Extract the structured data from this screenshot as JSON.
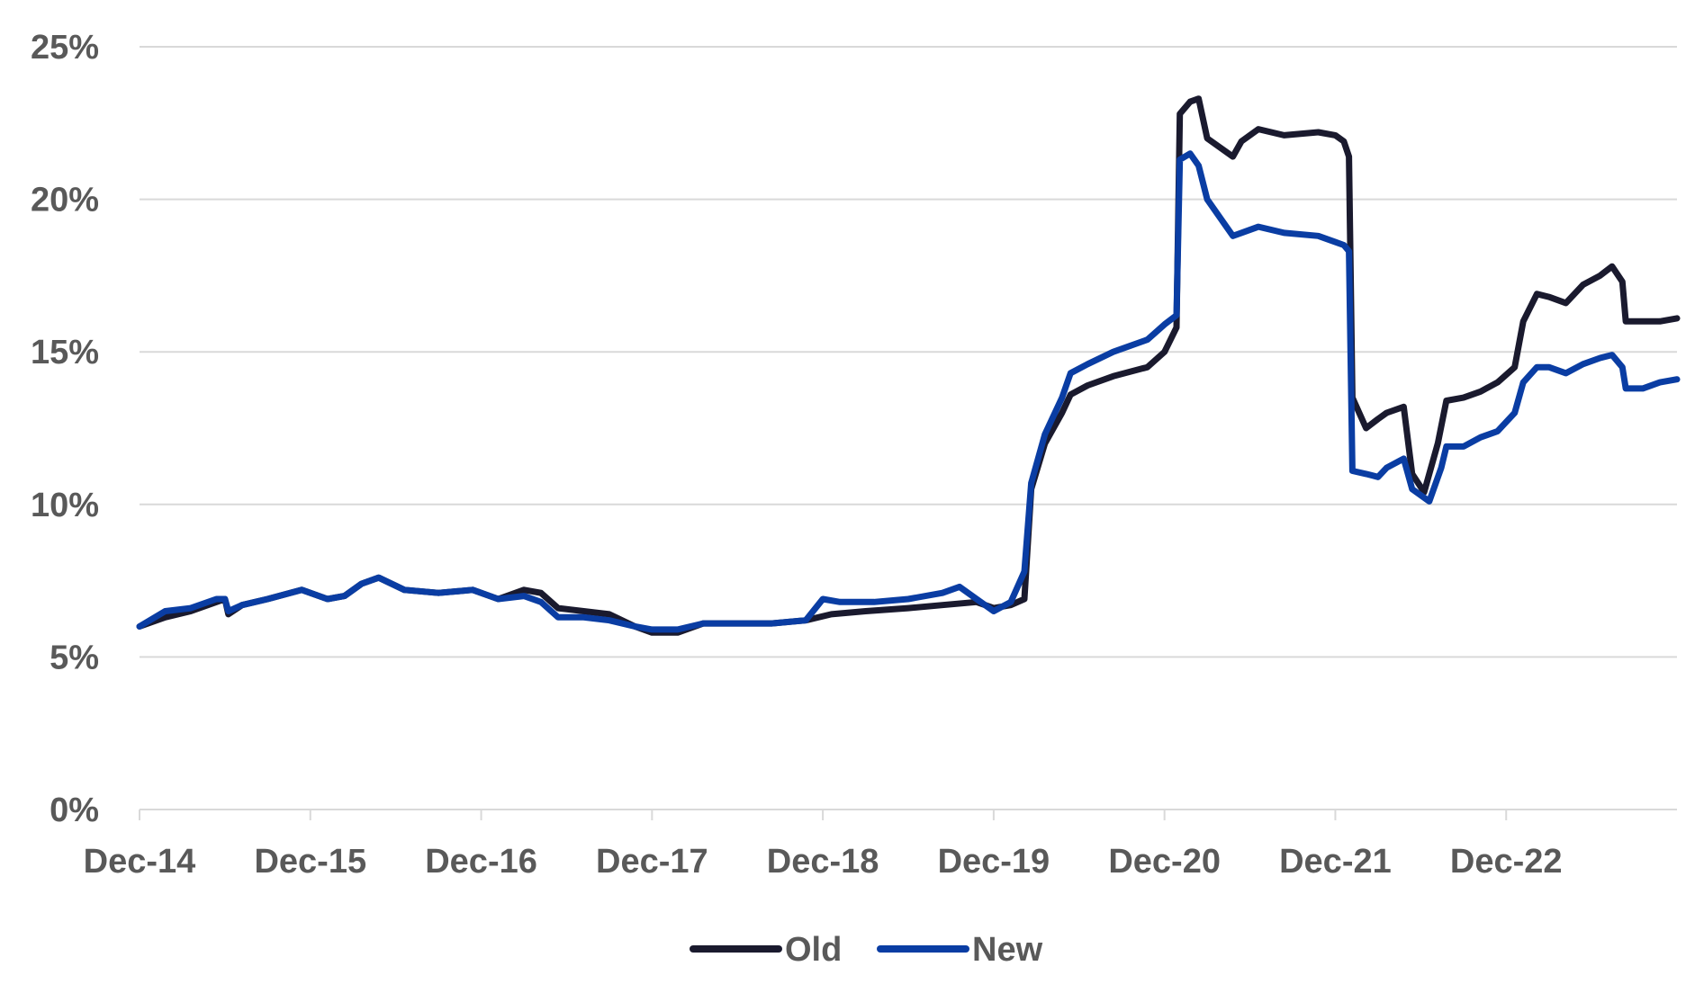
{
  "chart_data": {
    "type": "line",
    "title": "",
    "xlabel": "",
    "ylabel": "",
    "x_range": [
      0,
      9
    ],
    "ylim": [
      0,
      25
    ],
    "y_ticks": [
      0,
      5,
      10,
      15,
      20,
      25
    ],
    "y_tick_labels": [
      "0%",
      "5%",
      "10%",
      "15%",
      "20%",
      "25%"
    ],
    "x_ticks": [
      0,
      1,
      2,
      3,
      4,
      5,
      6,
      7,
      8
    ],
    "x_tick_labels": [
      "Dec-14",
      "Dec-15",
      "Dec-16",
      "Dec-17",
      "Dec-18",
      "Dec-19",
      "Dec-20",
      "Dec-21",
      "Dec-22"
    ],
    "grid": true,
    "legend_position": "bottom-center",
    "series": [
      {
        "name": "Old",
        "color": "#1a1a2e",
        "points": [
          [
            0.0,
            6.0
          ],
          [
            0.15,
            6.3
          ],
          [
            0.3,
            6.5
          ],
          [
            0.45,
            6.8
          ],
          [
            0.5,
            6.9
          ],
          [
            0.52,
            6.4
          ],
          [
            0.6,
            6.7
          ],
          [
            0.75,
            6.9
          ],
          [
            0.95,
            7.2
          ],
          [
            1.1,
            6.9
          ],
          [
            1.2,
            7.0
          ],
          [
            1.3,
            7.4
          ],
          [
            1.4,
            7.6
          ],
          [
            1.55,
            7.2
          ],
          [
            1.75,
            7.1
          ],
          [
            1.95,
            7.2
          ],
          [
            2.1,
            6.9
          ],
          [
            2.25,
            7.2
          ],
          [
            2.35,
            7.1
          ],
          [
            2.45,
            6.6
          ],
          [
            2.6,
            6.5
          ],
          [
            2.75,
            6.4
          ],
          [
            2.9,
            6.0
          ],
          [
            3.0,
            5.8
          ],
          [
            3.15,
            5.8
          ],
          [
            3.3,
            6.1
          ],
          [
            3.5,
            6.1
          ],
          [
            3.7,
            6.1
          ],
          [
            3.9,
            6.2
          ],
          [
            4.05,
            6.4
          ],
          [
            4.25,
            6.5
          ],
          [
            4.5,
            6.6
          ],
          [
            4.7,
            6.7
          ],
          [
            4.9,
            6.8
          ],
          [
            5.0,
            6.6
          ],
          [
            5.1,
            6.7
          ],
          [
            5.18,
            6.9
          ],
          [
            5.22,
            10.5
          ],
          [
            5.3,
            12.0
          ],
          [
            5.4,
            13.0
          ],
          [
            5.45,
            13.6
          ],
          [
            5.55,
            13.9
          ],
          [
            5.7,
            14.2
          ],
          [
            5.9,
            14.5
          ],
          [
            6.0,
            15.0
          ],
          [
            6.07,
            15.8
          ],
          [
            6.09,
            22.8
          ],
          [
            6.15,
            23.2
          ],
          [
            6.2,
            23.3
          ],
          [
            6.25,
            22.0
          ],
          [
            6.4,
            21.4
          ],
          [
            6.45,
            21.9
          ],
          [
            6.55,
            22.3
          ],
          [
            6.7,
            22.1
          ],
          [
            6.9,
            22.2
          ],
          [
            7.0,
            22.1
          ],
          [
            7.05,
            21.9
          ],
          [
            7.08,
            21.4
          ],
          [
            7.1,
            13.5
          ],
          [
            7.18,
            12.5
          ],
          [
            7.25,
            12.8
          ],
          [
            7.3,
            13.0
          ],
          [
            7.4,
            13.2
          ],
          [
            7.45,
            11.0
          ],
          [
            7.52,
            10.4
          ],
          [
            7.6,
            12.0
          ],
          [
            7.65,
            13.4
          ],
          [
            7.75,
            13.5
          ],
          [
            7.85,
            13.7
          ],
          [
            7.95,
            14.0
          ],
          [
            8.05,
            14.5
          ],
          [
            8.1,
            16.0
          ],
          [
            8.18,
            16.9
          ],
          [
            8.25,
            16.8
          ],
          [
            8.35,
            16.6
          ],
          [
            8.45,
            17.2
          ],
          [
            8.55,
            17.5
          ],
          [
            8.62,
            17.8
          ],
          [
            8.68,
            17.3
          ],
          [
            8.7,
            16.0
          ],
          [
            8.8,
            16.0
          ],
          [
            8.9,
            16.0
          ],
          [
            9.0,
            16.1
          ]
        ]
      },
      {
        "name": "New",
        "color": "#0a3da3",
        "points": [
          [
            0.0,
            6.0
          ],
          [
            0.15,
            6.5
          ],
          [
            0.3,
            6.6
          ],
          [
            0.45,
            6.9
          ],
          [
            0.5,
            6.9
          ],
          [
            0.52,
            6.5
          ],
          [
            0.6,
            6.7
          ],
          [
            0.75,
            6.9
          ],
          [
            0.95,
            7.2
          ],
          [
            1.1,
            6.9
          ],
          [
            1.2,
            7.0
          ],
          [
            1.3,
            7.4
          ],
          [
            1.4,
            7.6
          ],
          [
            1.55,
            7.2
          ],
          [
            1.75,
            7.1
          ],
          [
            1.95,
            7.2
          ],
          [
            2.1,
            6.9
          ],
          [
            2.25,
            7.0
          ],
          [
            2.35,
            6.8
          ],
          [
            2.45,
            6.3
          ],
          [
            2.6,
            6.3
          ],
          [
            2.75,
            6.2
          ],
          [
            2.9,
            6.0
          ],
          [
            3.0,
            5.9
          ],
          [
            3.15,
            5.9
          ],
          [
            3.3,
            6.1
          ],
          [
            3.5,
            6.1
          ],
          [
            3.7,
            6.1
          ],
          [
            3.9,
            6.2
          ],
          [
            4.0,
            6.9
          ],
          [
            4.1,
            6.8
          ],
          [
            4.3,
            6.8
          ],
          [
            4.5,
            6.9
          ],
          [
            4.7,
            7.1
          ],
          [
            4.8,
            7.3
          ],
          [
            4.9,
            6.9
          ],
          [
            5.0,
            6.5
          ],
          [
            5.1,
            6.8
          ],
          [
            5.18,
            7.8
          ],
          [
            5.22,
            10.7
          ],
          [
            5.3,
            12.3
          ],
          [
            5.4,
            13.5
          ],
          [
            5.45,
            14.3
          ],
          [
            5.55,
            14.6
          ],
          [
            5.7,
            15.0
          ],
          [
            5.9,
            15.4
          ],
          [
            6.0,
            15.9
          ],
          [
            6.07,
            16.2
          ],
          [
            6.09,
            21.3
          ],
          [
            6.15,
            21.5
          ],
          [
            6.2,
            21.1
          ],
          [
            6.25,
            20.0
          ],
          [
            6.4,
            18.8
          ],
          [
            6.45,
            18.9
          ],
          [
            6.55,
            19.1
          ],
          [
            6.7,
            18.9
          ],
          [
            6.9,
            18.8
          ],
          [
            7.0,
            18.6
          ],
          [
            7.05,
            18.5
          ],
          [
            7.08,
            18.3
          ],
          [
            7.1,
            11.1
          ],
          [
            7.18,
            11.0
          ],
          [
            7.25,
            10.9
          ],
          [
            7.3,
            11.2
          ],
          [
            7.4,
            11.5
          ],
          [
            7.45,
            10.5
          ],
          [
            7.55,
            10.1
          ],
          [
            7.62,
            11.2
          ],
          [
            7.65,
            11.9
          ],
          [
            7.75,
            11.9
          ],
          [
            7.85,
            12.2
          ],
          [
            7.95,
            12.4
          ],
          [
            8.05,
            13.0
          ],
          [
            8.1,
            14.0
          ],
          [
            8.18,
            14.5
          ],
          [
            8.25,
            14.5
          ],
          [
            8.35,
            14.3
          ],
          [
            8.45,
            14.6
          ],
          [
            8.55,
            14.8
          ],
          [
            8.62,
            14.9
          ],
          [
            8.68,
            14.5
          ],
          [
            8.7,
            13.8
          ],
          [
            8.8,
            13.8
          ],
          [
            8.9,
            14.0
          ],
          [
            9.0,
            14.1
          ]
        ]
      }
    ]
  }
}
